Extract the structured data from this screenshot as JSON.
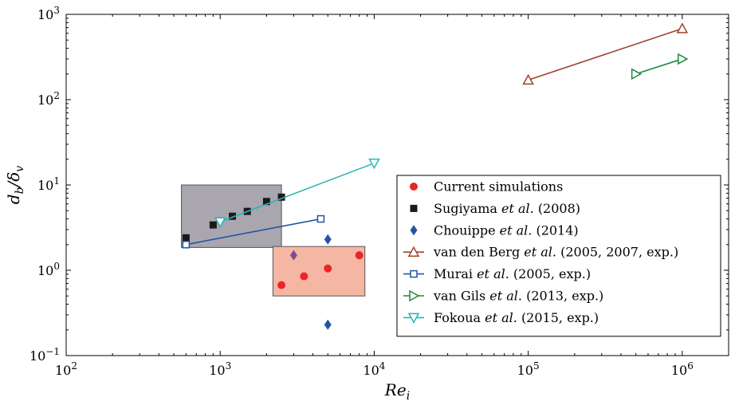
{
  "chart_data": {
    "type": "scatter",
    "xlabel": "Re_i",
    "ylabel": "d_b/δ_v",
    "xscale": "log",
    "yscale": "log",
    "xlim": [
      100,
      2000000
    ],
    "ylim": [
      0.1,
      1000
    ],
    "grid": false,
    "legend_position": "lower-right",
    "x_ticks": [
      {
        "value": 100,
        "base": "10",
        "exp": "2"
      },
      {
        "value": 1000,
        "base": "10",
        "exp": "3"
      },
      {
        "value": 10000,
        "base": "10",
        "exp": "4"
      },
      {
        "value": 100000,
        "base": "10",
        "exp": "5"
      },
      {
        "value": 1000000,
        "base": "10",
        "exp": "6"
      }
    ],
    "y_ticks": [
      {
        "value": 0.1,
        "base": "10",
        "exp": "−1"
      },
      {
        "value": 1,
        "base": "10",
        "exp": "0"
      },
      {
        "value": 10,
        "base": "10",
        "exp": "1"
      },
      {
        "value": 100,
        "base": "10",
        "exp": "2"
      },
      {
        "value": 1000,
        "base": "10",
        "exp": "3"
      }
    ],
    "regions": [
      {
        "x": [
          560,
          2500
        ],
        "y": [
          1.85,
          10
        ],
        "color": "#a9a6b0"
      },
      {
        "x": [
          2200,
          8700
        ],
        "y": [
          0.5,
          1.9
        ],
        "color": "#f6b6a4"
      }
    ],
    "series": [
      {
        "name": "Current simulations",
        "marker": "circle",
        "color": "#e8262a",
        "line": false,
        "points": [
          [
            2500,
            0.67
          ],
          [
            3500,
            0.85
          ],
          [
            5000,
            1.05
          ],
          [
            8000,
            1.5
          ]
        ]
      },
      {
        "name": "Sugiyama et al. (2008)",
        "marker": "square",
        "color": "#1a1a1a",
        "line": false,
        "points": [
          [
            600,
            2.4
          ],
          [
            900,
            3.4
          ],
          [
            1200,
            4.3
          ],
          [
            1500,
            4.9
          ],
          [
            2000,
            6.4
          ],
          [
            2500,
            7.2
          ]
        ]
      },
      {
        "name": "Chouippe et al. (2014)",
        "marker": "diamond",
        "color": "#2255a4",
        "line": false,
        "points": [
          [
            5000,
            2.3
          ],
          [
            5000,
            0.23
          ]
        ]
      },
      {
        "name": "",
        "marker": "diamond",
        "color": "#7a4f8f",
        "line": false,
        "points": [
          [
            3000,
            1.5
          ]
        ]
      },
      {
        "name": "van den Berg et al. (2005, 2007, exp.)",
        "marker": "triangle-up",
        "color": "#a0422a",
        "line": true,
        "points": [
          [
            100000,
            170
          ],
          [
            1000000,
            680
          ]
        ]
      },
      {
        "name": "Murai et al. (2005, exp.)",
        "marker": "square-open",
        "color": "#2255a4",
        "line": true,
        "points": [
          [
            600,
            2.0
          ],
          [
            4500,
            4.0
          ]
        ]
      },
      {
        "name": "van Gils et al. (2013, exp.)",
        "marker": "triangle-right",
        "color": "#1e8a3e",
        "line": true,
        "points": [
          [
            500000,
            200
          ],
          [
            1000000,
            300
          ]
        ]
      },
      {
        "name": "Fokoua et al. (2015, exp.)",
        "marker": "triangle-down",
        "color": "#2bb5b5",
        "line": true,
        "points": [
          [
            1000,
            3.7
          ],
          [
            10000,
            18
          ]
        ]
      }
    ],
    "legend": [
      {
        "label": "Current simulations",
        "before": "Current simulations",
        "italic": "",
        "after": "",
        "marker": "circle",
        "color": "#e8262a",
        "line": false
      },
      {
        "label": "Sugiyama et al. (2008)",
        "before": "Sugiyama ",
        "italic": "et al",
        "after": ". (2008)",
        "marker": "square",
        "color": "#1a1a1a",
        "line": false
      },
      {
        "label": "Chouippe et al. (2014)",
        "before": "Chouippe ",
        "italic": "et al",
        "after": ". (2014)",
        "marker": "diamond",
        "color": "#2255a4",
        "line": false
      },
      {
        "label": "van den Berg et al. (2005, 2007, exp.)",
        "before": "van den Berg ",
        "italic": "et al",
        "after": ". (2005, 2007, exp.)",
        "marker": "triangle-up",
        "color": "#a0422a",
        "line": true
      },
      {
        "label": "Murai et al. (2005, exp.)",
        "before": "Murai ",
        "italic": "et al",
        "after": ". (2005, exp.)",
        "marker": "square-open",
        "color": "#2255a4",
        "line": true
      },
      {
        "label": "van Gils et al. (2013, exp.)",
        "before": "van Gils ",
        "italic": "et al",
        "after": ". (2013, exp.)",
        "marker": "triangle-right",
        "color": "#1e8a3e",
        "line": true
      },
      {
        "label": "Fokoua et al. (2015, exp.)",
        "before": "Fokoua ",
        "italic": "et al",
        "after": ". (2015, exp.)",
        "marker": "triangle-down",
        "color": "#2bb5b5",
        "line": true
      }
    ]
  }
}
